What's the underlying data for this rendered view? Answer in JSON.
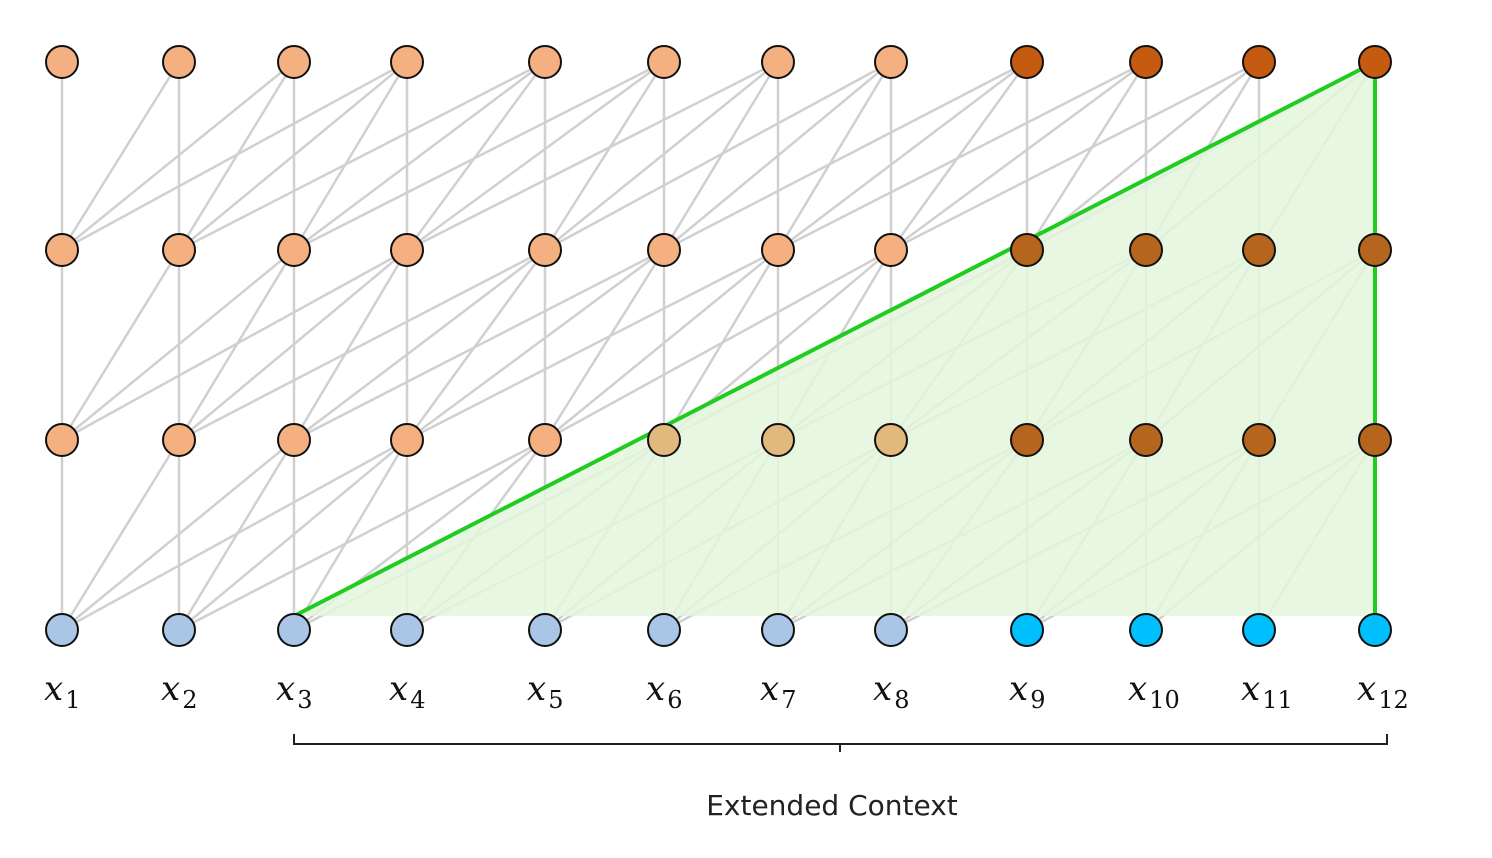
{
  "diagram": {
    "layers": 4,
    "columns": 12,
    "token_labels": [
      {
        "base": "x",
        "sub": "1"
      },
      {
        "base": "x",
        "sub": "2"
      },
      {
        "base": "x",
        "sub": "3"
      },
      {
        "base": "x",
        "sub": "4"
      },
      {
        "base": "x",
        "sub": "5"
      },
      {
        "base": "x",
        "sub": "6"
      },
      {
        "base": "x",
        "sub": "7"
      },
      {
        "base": "x",
        "sub": "8"
      },
      {
        "base": "x",
        "sub": "9"
      },
      {
        "base": "x",
        "sub": "10"
      },
      {
        "base": "x",
        "sub": "11"
      },
      {
        "base": "x",
        "sub": "12"
      }
    ],
    "window_size": 4,
    "extended_context_label": "Extended Context",
    "extended_context_range": [
      3,
      12
    ],
    "colors": {
      "input_node": "#a9c6e6",
      "input_node_new": "#00bfff",
      "hidden_node": "#f4b080",
      "hidden_node_context": "#e2b97c",
      "hidden_node_new": "#b5651d",
      "top_node_new": "#c55a11",
      "edge": "#d0d0d0",
      "highlight": "#1fcc1f",
      "highlight_fill": "#e3f6dc",
      "node_stroke": "#111111"
    }
  }
}
